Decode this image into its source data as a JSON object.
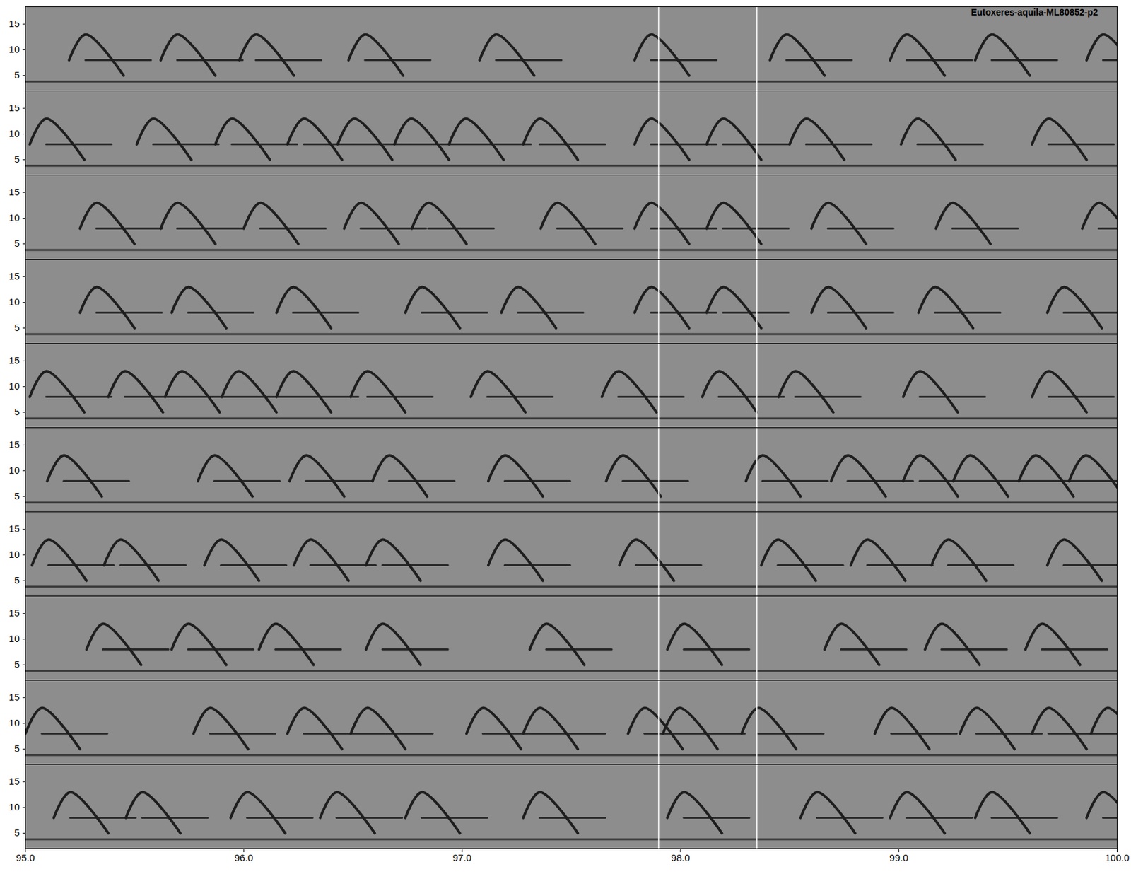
{
  "chart_data": {
    "type": "spectrogram",
    "title": "Eutoxeres-aquila-ML80852-p2",
    "xlim": [
      95,
      100
    ],
    "xticks": [
      95,
      96,
      97,
      98,
      99,
      100
    ],
    "ylim": [
      2,
      18.4
    ],
    "yticks": [
      5,
      10,
      15
    ],
    "markers": [
      97.9,
      98.35
    ],
    "noise_band": 3.8,
    "syllable": {
      "duration": 0.25,
      "f_low": 5,
      "f_peak": 13,
      "f_tail": 8,
      "tail": 0.3
    },
    "rows": [
      {
        "onsets": [
          95.2,
          95.62,
          95.98,
          96.48,
          97.08,
          97.79,
          98.41,
          98.96,
          99.35,
          99.86
        ]
      },
      {
        "onsets": [
          95.02,
          95.51,
          95.87,
          96.2,
          96.43,
          96.69,
          96.94,
          97.28,
          97.79,
          98.12,
          98.5,
          99.01,
          99.61
        ]
      },
      {
        "onsets": [
          95.25,
          95.62,
          96.0,
          96.46,
          96.77,
          97.36,
          97.79,
          98.12,
          98.6,
          99.17,
          99.84
        ]
      },
      {
        "onsets": [
          95.25,
          95.67,
          96.15,
          96.74,
          97.18,
          97.79,
          98.12,
          98.6,
          99.09,
          99.68
        ]
      },
      {
        "onsets": [
          95.02,
          95.38,
          95.64,
          95.9,
          96.15,
          96.49,
          97.04,
          97.64,
          98.1,
          98.45,
          99.02,
          99.61
        ]
      },
      {
        "onsets": [
          95.1,
          95.79,
          96.21,
          96.59,
          97.12,
          97.66,
          98.3,
          98.69,
          99.02,
          99.25,
          99.55,
          99.78
        ]
      },
      {
        "onsets": [
          95.03,
          95.36,
          95.82,
          96.23,
          96.56,
          97.12,
          97.72,
          98.37,
          98.78,
          99.15,
          99.68
        ]
      },
      {
        "onsets": [
          95.28,
          95.67,
          96.07,
          96.56,
          97.31,
          97.94,
          98.66,
          99.12,
          99.58
        ]
      },
      {
        "onsets": [
          95.0,
          95.77,
          96.2,
          96.49,
          97.02,
          97.28,
          97.76,
          97.92,
          98.28,
          98.89,
          99.28,
          99.61,
          99.88
        ]
      },
      {
        "onsets": [
          95.13,
          95.46,
          95.94,
          96.35,
          96.74,
          97.28,
          97.94,
          98.55,
          98.96,
          99.35,
          99.86
        ]
      }
    ]
  }
}
